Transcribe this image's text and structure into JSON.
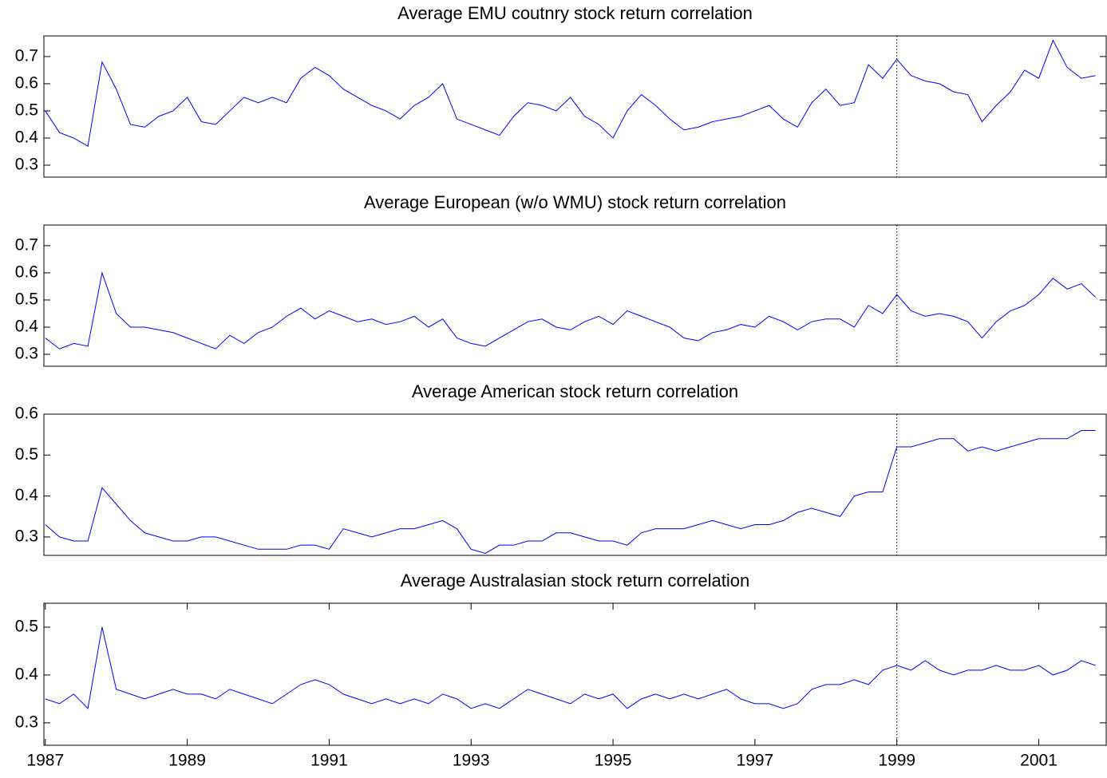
{
  "chart_data": [
    {
      "type": "line",
      "title": "Average EMU coutnry stock return correlation",
      "color": "#0000ff",
      "vline": 1999,
      "xlim": [
        1986.98,
        2001.95
      ],
      "ylim": [
        0.256,
        0.776
      ],
      "yticks": [
        0.3,
        0.4,
        0.5,
        0.6,
        0.7
      ],
      "x": [
        1987.0,
        1987.2,
        1987.4,
        1987.6,
        1987.8,
        1988.0,
        1988.2,
        1988.4,
        1988.6,
        1988.8,
        1989.0,
        1989.2,
        1989.4,
        1989.6,
        1989.8,
        1990.0,
        1990.2,
        1990.4,
        1990.6,
        1990.8,
        1991.0,
        1991.2,
        1991.4,
        1991.6,
        1991.8,
        1992.0,
        1992.2,
        1992.4,
        1992.6,
        1992.8,
        1993.0,
        1993.2,
        1993.4,
        1993.6,
        1993.8,
        1994.0,
        1994.2,
        1994.4,
        1994.6,
        1994.8,
        1995.0,
        1995.2,
        1995.4,
        1995.6,
        1995.8,
        1996.0,
        1996.2,
        1996.4,
        1996.6,
        1996.8,
        1997.0,
        1997.2,
        1997.4,
        1997.6,
        1997.8,
        1998.0,
        1998.2,
        1998.4,
        1998.6,
        1998.8,
        1999.0,
        1999.2,
        1999.4,
        1999.6,
        1999.8,
        2000.0,
        2000.2,
        2000.4,
        2000.6,
        2000.8,
        2001.0,
        2001.2,
        2001.4,
        2001.6,
        2001.8
      ],
      "values": [
        0.5,
        0.42,
        0.4,
        0.37,
        0.68,
        0.58,
        0.45,
        0.44,
        0.48,
        0.5,
        0.55,
        0.46,
        0.45,
        0.5,
        0.55,
        0.53,
        0.55,
        0.53,
        0.62,
        0.66,
        0.63,
        0.58,
        0.55,
        0.52,
        0.5,
        0.47,
        0.52,
        0.55,
        0.6,
        0.47,
        0.45,
        0.43,
        0.41,
        0.48,
        0.53,
        0.52,
        0.5,
        0.55,
        0.48,
        0.45,
        0.4,
        0.5,
        0.56,
        0.52,
        0.47,
        0.43,
        0.44,
        0.46,
        0.47,
        0.48,
        0.5,
        0.52,
        0.47,
        0.44,
        0.53,
        0.58,
        0.52,
        0.53,
        0.67,
        0.62,
        0.69,
        0.63,
        0.61,
        0.6,
        0.57,
        0.56,
        0.46,
        0.52,
        0.57,
        0.65,
        0.62,
        0.76,
        0.66,
        0.62,
        0.63
      ]
    },
    {
      "type": "line",
      "title": "Average European (w/o WMU) stock return correlation",
      "color": "#0000ff",
      "vline": 1999,
      "xlim": [
        1986.98,
        2001.95
      ],
      "ylim": [
        0.256,
        0.776
      ],
      "yticks": [
        0.3,
        0.4,
        0.5,
        0.6,
        0.7
      ],
      "x": [
        1987.0,
        1987.2,
        1987.4,
        1987.6,
        1987.8,
        1988.0,
        1988.2,
        1988.4,
        1988.6,
        1988.8,
        1989.0,
        1989.2,
        1989.4,
        1989.6,
        1989.8,
        1990.0,
        1990.2,
        1990.4,
        1990.6,
        1990.8,
        1991.0,
        1991.2,
        1991.4,
        1991.6,
        1991.8,
        1992.0,
        1992.2,
        1992.4,
        1992.6,
        1992.8,
        1993.0,
        1993.2,
        1993.4,
        1993.6,
        1993.8,
        1994.0,
        1994.2,
        1994.4,
        1994.6,
        1994.8,
        1995.0,
        1995.2,
        1995.4,
        1995.6,
        1995.8,
        1996.0,
        1996.2,
        1996.4,
        1996.6,
        1996.8,
        1997.0,
        1997.2,
        1997.4,
        1997.6,
        1997.8,
        1998.0,
        1998.2,
        1998.4,
        1998.6,
        1998.8,
        1999.0,
        1999.2,
        1999.4,
        1999.6,
        1999.8,
        2000.0,
        2000.2,
        2000.4,
        2000.6,
        2000.8,
        2001.0,
        2001.2,
        2001.4,
        2001.6,
        2001.8
      ],
      "values": [
        0.36,
        0.32,
        0.34,
        0.33,
        0.6,
        0.45,
        0.4,
        0.4,
        0.39,
        0.38,
        0.36,
        0.34,
        0.32,
        0.37,
        0.34,
        0.38,
        0.4,
        0.44,
        0.47,
        0.43,
        0.46,
        0.44,
        0.42,
        0.43,
        0.41,
        0.42,
        0.44,
        0.4,
        0.43,
        0.36,
        0.34,
        0.33,
        0.36,
        0.39,
        0.42,
        0.43,
        0.4,
        0.39,
        0.42,
        0.44,
        0.41,
        0.46,
        0.44,
        0.42,
        0.4,
        0.36,
        0.35,
        0.38,
        0.39,
        0.41,
        0.4,
        0.44,
        0.42,
        0.39,
        0.42,
        0.43,
        0.43,
        0.4,
        0.48,
        0.45,
        0.52,
        0.46,
        0.44,
        0.45,
        0.44,
        0.42,
        0.36,
        0.42,
        0.46,
        0.48,
        0.52,
        0.58,
        0.54,
        0.56,
        0.51
      ]
    },
    {
      "type": "line",
      "title": "Average American stock return correlation",
      "color": "#0000ff",
      "vline": 1999,
      "xlim": [
        1986.98,
        2001.95
      ],
      "ylim": [
        0.255,
        0.6
      ],
      "yticks": [
        0.3,
        0.4,
        0.5,
        0.6
      ],
      "x": [
        1987.0,
        1987.2,
        1987.4,
        1987.6,
        1987.8,
        1988.0,
        1988.2,
        1988.4,
        1988.6,
        1988.8,
        1989.0,
        1989.2,
        1989.4,
        1989.6,
        1989.8,
        1990.0,
        1990.2,
        1990.4,
        1990.6,
        1990.8,
        1991.0,
        1991.2,
        1991.4,
        1991.6,
        1991.8,
        1992.0,
        1992.2,
        1992.4,
        1992.6,
        1992.8,
        1993.0,
        1993.2,
        1993.4,
        1993.6,
        1993.8,
        1994.0,
        1994.2,
        1994.4,
        1994.6,
        1994.8,
        1995.0,
        1995.2,
        1995.4,
        1995.6,
        1995.8,
        1996.0,
        1996.2,
        1996.4,
        1996.6,
        1996.8,
        1997.0,
        1997.2,
        1997.4,
        1997.6,
        1997.8,
        1998.0,
        1998.2,
        1998.4,
        1998.6,
        1998.8,
        1999.0,
        1999.2,
        1999.4,
        1999.6,
        1999.8,
        2000.0,
        2000.2,
        2000.4,
        2000.6,
        2000.8,
        2001.0,
        2001.2,
        2001.4,
        2001.6,
        2001.8
      ],
      "values": [
        0.33,
        0.3,
        0.29,
        0.29,
        0.42,
        0.38,
        0.34,
        0.31,
        0.3,
        0.29,
        0.29,
        0.3,
        0.3,
        0.29,
        0.28,
        0.27,
        0.27,
        0.27,
        0.28,
        0.28,
        0.27,
        0.32,
        0.31,
        0.3,
        0.31,
        0.32,
        0.32,
        0.33,
        0.34,
        0.32,
        0.27,
        0.26,
        0.28,
        0.28,
        0.29,
        0.29,
        0.31,
        0.31,
        0.3,
        0.29,
        0.29,
        0.28,
        0.31,
        0.32,
        0.32,
        0.32,
        0.33,
        0.34,
        0.33,
        0.32,
        0.33,
        0.33,
        0.34,
        0.36,
        0.37,
        0.36,
        0.35,
        0.4,
        0.41,
        0.41,
        0.52,
        0.52,
        0.53,
        0.54,
        0.54,
        0.51,
        0.52,
        0.51,
        0.52,
        0.53,
        0.54,
        0.54,
        0.54,
        0.56,
        0.56
      ]
    },
    {
      "type": "line",
      "title": "Average Australasian stock return correlation",
      "color": "#0000ff",
      "vline": 1999,
      "xlim": [
        1986.98,
        2001.95
      ],
      "ylim": [
        0.253,
        0.55
      ],
      "yticks": [
        0.3,
        0.4,
        0.5
      ],
      "xticks": [
        1987,
        1989,
        1991,
        1993,
        1995,
        1997,
        1999,
        2001
      ],
      "x": [
        1987.0,
        1987.2,
        1987.4,
        1987.6,
        1987.8,
        1988.0,
        1988.2,
        1988.4,
        1988.6,
        1988.8,
        1989.0,
        1989.2,
        1989.4,
        1989.6,
        1989.8,
        1990.0,
        1990.2,
        1990.4,
        1990.6,
        1990.8,
        1991.0,
        1991.2,
        1991.4,
        1991.6,
        1991.8,
        1992.0,
        1992.2,
        1992.4,
        1992.6,
        1992.8,
        1993.0,
        1993.2,
        1993.4,
        1993.6,
        1993.8,
        1994.0,
        1994.2,
        1994.4,
        1994.6,
        1994.8,
        1995.0,
        1995.2,
        1995.4,
        1995.6,
        1995.8,
        1996.0,
        1996.2,
        1996.4,
        1996.6,
        1996.8,
        1997.0,
        1997.2,
        1997.4,
        1997.6,
        1997.8,
        1998.0,
        1998.2,
        1998.4,
        1998.6,
        1998.8,
        1999.0,
        1999.2,
        1999.4,
        1999.6,
        1999.8,
        2000.0,
        2000.2,
        2000.4,
        2000.6,
        2000.8,
        2001.0,
        2001.2,
        2001.4,
        2001.6,
        2001.8
      ],
      "values": [
        0.35,
        0.34,
        0.36,
        0.33,
        0.5,
        0.37,
        0.36,
        0.35,
        0.36,
        0.37,
        0.36,
        0.36,
        0.35,
        0.37,
        0.36,
        0.35,
        0.34,
        0.36,
        0.38,
        0.39,
        0.38,
        0.36,
        0.35,
        0.34,
        0.35,
        0.34,
        0.35,
        0.34,
        0.36,
        0.35,
        0.33,
        0.34,
        0.33,
        0.35,
        0.37,
        0.36,
        0.35,
        0.34,
        0.36,
        0.35,
        0.36,
        0.33,
        0.35,
        0.36,
        0.35,
        0.36,
        0.35,
        0.36,
        0.37,
        0.35,
        0.34,
        0.34,
        0.33,
        0.34,
        0.37,
        0.38,
        0.38,
        0.39,
        0.38,
        0.41,
        0.42,
        0.41,
        0.43,
        0.41,
        0.4,
        0.41,
        0.41,
        0.42,
        0.41,
        0.41,
        0.42,
        0.4,
        0.41,
        0.43,
        0.42
      ]
    }
  ]
}
